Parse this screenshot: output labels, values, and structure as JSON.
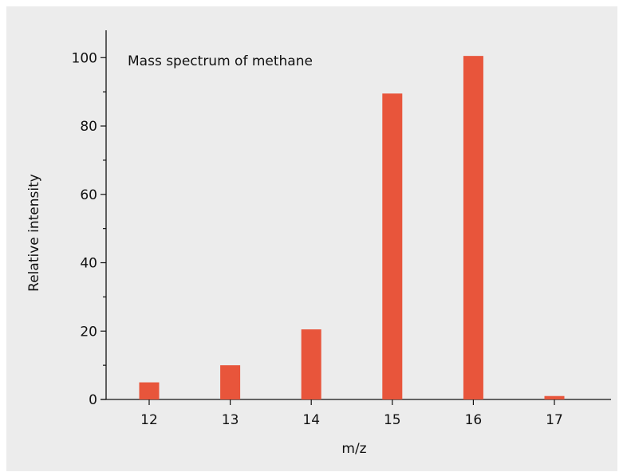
{
  "chart_data": {
    "type": "bar",
    "title": "Mass spectrum of methane",
    "xlabel": "m/z",
    "ylabel": "Relative intensity",
    "categories": [
      "12",
      "13",
      "14",
      "15",
      "16",
      "17"
    ],
    "values": [
      5,
      10,
      20.5,
      89.5,
      100.5,
      1
    ],
    "ylim": [
      0,
      108
    ],
    "yticks": [
      0,
      20,
      40,
      60,
      80,
      100
    ],
    "grid": false,
    "legend": "none",
    "bar_color": "#e8553b",
    "background_color": "#ececec"
  }
}
